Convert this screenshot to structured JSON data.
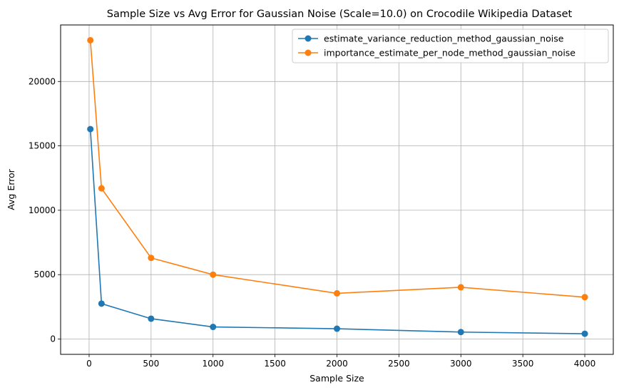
{
  "chart_data": {
    "type": "line",
    "title": "Sample Size vs Avg Error for Gaussian Noise (Scale=10.0) on Crocodile Wikipedia Dataset",
    "xlabel": "Sample Size",
    "ylabel": "Avg Error",
    "xlim": [
      -230,
      4230
    ],
    "ylim": [
      -1190,
      24390
    ],
    "xticks": [
      0,
      500,
      1000,
      1500,
      2000,
      2500,
      3000,
      3500,
      4000
    ],
    "yticks": [
      0,
      5000,
      10000,
      15000,
      20000
    ],
    "grid": true,
    "legend_position": "top-right",
    "x": [
      10,
      100,
      500,
      1000,
      2000,
      3000,
      4000
    ],
    "series": [
      {
        "name": "estimate_variance_reduction_method_gaussian_noise",
        "color": "#1f77b4",
        "values": [
          16300,
          2750,
          1580,
          940,
          800,
          540,
          410
        ]
      },
      {
        "name": "importance_estimate_per_node_method_gaussian_noise",
        "color": "#ff7f0e",
        "values": [
          23200,
          11700,
          6300,
          5000,
          3550,
          4020,
          3250
        ]
      }
    ]
  }
}
